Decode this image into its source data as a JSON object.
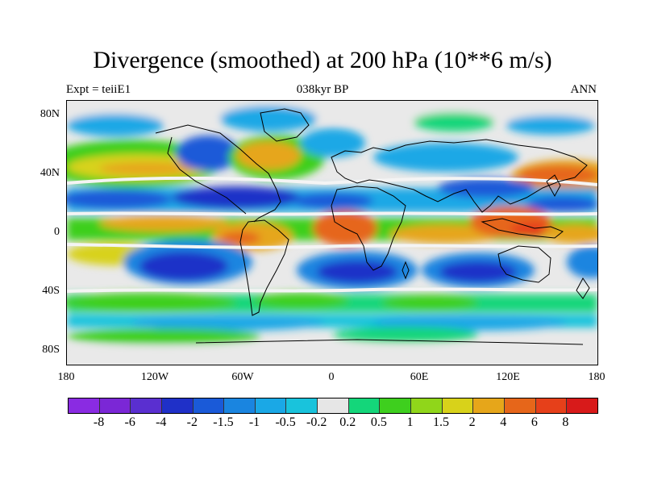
{
  "title": "Divergence (smoothed) at 200 hPa (10**6 m/s)",
  "subtitle": {
    "left": "Expt = teiiE1",
    "center": "038kyr BP",
    "right": "ANN"
  },
  "y_ticks": [
    "80N",
    "40N",
    "0",
    "40S",
    "80S"
  ],
  "x_ticks": [
    "180",
    "120W",
    "60W",
    "0",
    "60E",
    "120E",
    "180"
  ],
  "colorbar": {
    "labels": [
      "-8",
      "-6",
      "-4",
      "-2",
      "-1.5",
      "-1",
      "-0.5",
      "-0.2",
      "0.2",
      "0.5",
      "1",
      "1.5",
      "2",
      "4",
      "6",
      "8"
    ],
    "colors": [
      "#8a2be2",
      "#7b27d6",
      "#5a2fd0",
      "#1f30c8",
      "#1a5ad8",
      "#1a85e0",
      "#1aa8e6",
      "#19c3dc",
      "#e6e6e6",
      "#14d67a",
      "#3ecf1e",
      "#90d61a",
      "#d8d21a",
      "#e6a61a",
      "#e6661a",
      "#e6401a",
      "#d81a1a"
    ]
  }
}
